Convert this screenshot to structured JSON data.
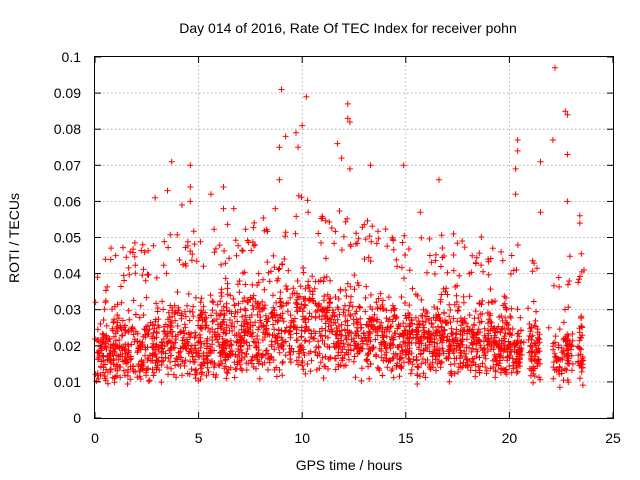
{
  "chart_data": {
    "type": "scatter",
    "title": "Day 014 of 2016, Rate Of TEC Index for receiver pohn",
    "xlabel": "GPS time / hours",
    "ylabel": "ROTI / TECUs",
    "xlim": [
      0,
      25
    ],
    "ylim": [
      0,
      0.1
    ],
    "grid": true,
    "marker": "+",
    "x_ticks": [
      0,
      5,
      10,
      15,
      20,
      25
    ],
    "x_tick_labels": [
      "0",
      "5",
      "10",
      "15",
      "20",
      "25"
    ],
    "y_ticks": [
      0,
      0.01,
      0.02,
      0.03,
      0.04,
      0.05,
      0.06,
      0.07,
      0.08,
      0.09,
      0.1
    ],
    "y_tick_labels": [
      "0",
      "0.01",
      "0.02",
      "0.03",
      "0.04",
      "0.05",
      "0.06",
      "0.07",
      "0.08",
      "0.09",
      "0.1"
    ],
    "colors": {
      "points": "#ff0000",
      "grid": "#a0a0a0",
      "axes": "#000000"
    },
    "band_profile": {
      "description": "Estimated envelope of the dense point cloud (data units)",
      "hour": [
        0,
        1,
        2,
        3,
        4,
        5,
        6,
        7,
        8,
        9,
        10,
        11,
        12,
        13,
        14,
        15,
        16,
        17,
        18,
        19,
        20,
        21,
        22,
        23,
        23.6
      ],
      "core_low": [
        0.008,
        0.008,
        0.008,
        0.009,
        0.009,
        0.009,
        0.009,
        0.009,
        0.01,
        0.01,
        0.01,
        0.01,
        0.01,
        0.009,
        0.009,
        0.009,
        0.009,
        0.009,
        0.009,
        0.009,
        0.009,
        0.009,
        0.008,
        0.008,
        0.008
      ],
      "core_high": [
        0.034,
        0.036,
        0.037,
        0.038,
        0.04,
        0.041,
        0.042,
        0.043,
        0.046,
        0.05,
        0.05,
        0.047,
        0.046,
        0.043,
        0.041,
        0.041,
        0.04,
        0.039,
        0.039,
        0.038,
        0.038,
        0.034,
        0.032,
        0.034,
        0.034
      ],
      "gaps_hours": [
        [
          20.6,
          20.9
        ],
        [
          21.5,
          22.1
        ],
        [
          23.1,
          23.25
        ]
      ]
    },
    "notable_points": [
      {
        "x": 22.2,
        "y": 0.097
      },
      {
        "x": 9.0,
        "y": 0.091
      },
      {
        "x": 10.2,
        "y": 0.089
      },
      {
        "x": 12.2,
        "y": 0.087
      },
      {
        "x": 22.7,
        "y": 0.085
      },
      {
        "x": 22.8,
        "y": 0.084
      },
      {
        "x": 12.2,
        "y": 0.083
      },
      {
        "x": 12.3,
        "y": 0.082
      },
      {
        "x": 9.7,
        "y": 0.079
      },
      {
        "x": 9.2,
        "y": 0.078
      },
      {
        "x": 22.1,
        "y": 0.077
      },
      {
        "x": 20.4,
        "y": 0.077
      },
      {
        "x": 11.7,
        "y": 0.076
      },
      {
        "x": 9.8,
        "y": 0.075
      },
      {
        "x": 8.9,
        "y": 0.075
      },
      {
        "x": 20.4,
        "y": 0.074
      },
      {
        "x": 22.8,
        "y": 0.073
      },
      {
        "x": 3.7,
        "y": 0.071
      },
      {
        "x": 21.5,
        "y": 0.071
      },
      {
        "x": 4.6,
        "y": 0.07
      },
      {
        "x": 13.3,
        "y": 0.07
      },
      {
        "x": 14.9,
        "y": 0.07
      },
      {
        "x": 20.3,
        "y": 0.069
      },
      {
        "x": 16.6,
        "y": 0.066
      },
      {
        "x": 4.6,
        "y": 0.064
      },
      {
        "x": 6.2,
        "y": 0.064
      },
      {
        "x": 3.5,
        "y": 0.063
      },
      {
        "x": 5.6,
        "y": 0.062
      },
      {
        "x": 20.3,
        "y": 0.062
      },
      {
        "x": 2.9,
        "y": 0.061
      },
      {
        "x": 4.6,
        "y": 0.06
      },
      {
        "x": 4.2,
        "y": 0.059
      },
      {
        "x": 6.2,
        "y": 0.058
      },
      {
        "x": 8.7,
        "y": 0.058
      },
      {
        "x": 6.7,
        "y": 0.058
      },
      {
        "x": 22.8,
        "y": 0.06
      },
      {
        "x": 21.5,
        "y": 0.057
      },
      {
        "x": 23.4,
        "y": 0.056
      },
      {
        "x": 23.4,
        "y": 0.054
      },
      {
        "x": 15.7,
        "y": 0.057
      },
      {
        "x": 8.9,
        "y": 0.066
      },
      {
        "x": 12.3,
        "y": 0.069
      },
      {
        "x": 11.9,
        "y": 0.072
      },
      {
        "x": 10.0,
        "y": 0.081
      },
      {
        "x": 0.5,
        "y": 0.044
      },
      {
        "x": 1.0,
        "y": 0.045
      },
      {
        "x": 1.7,
        "y": 0.046
      },
      {
        "x": 2.3,
        "y": 0.048
      },
      {
        "x": 17.3,
        "y": 0.051
      },
      {
        "x": 19.2,
        "y": 0.047
      },
      {
        "x": 19.6,
        "y": 0.046
      },
      {
        "x": 20.7,
        "y": 0.021
      },
      {
        "x": 21.9,
        "y": 0.025
      },
      {
        "x": 23.6,
        "y": 0.041
      }
    ]
  }
}
